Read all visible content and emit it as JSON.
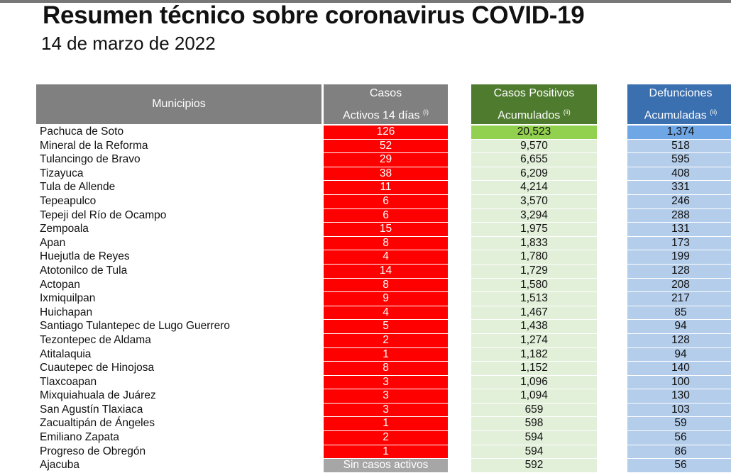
{
  "title": "Resumen técnico sobre coronavirus COVID-19",
  "date": "14 de marzo de 2022",
  "headers": {
    "municipios": "Municipios",
    "activos_l1": "Casos",
    "activos_l2": "Activos 14 días",
    "activos_note": "(i)",
    "positivos_l1": "Casos Positivos",
    "positivos_l2": "Acumulados",
    "positivos_note": "(ii)",
    "defunciones_l1": "Defunciones",
    "defunciones_l2": "Acumuladas",
    "defunciones_note": "(ii)"
  },
  "colors": {
    "header_gray": "#808080",
    "header_green": "#4f7b2f",
    "header_blue": "#3a6fb0",
    "active_red": "#ff0000",
    "no_active_gray": "#a6a6a6",
    "positive_light": "#e2efd9",
    "positive_top": "#92d050",
    "deaths_light": "#b4cdea",
    "deaths_top": "#6ea6e6"
  },
  "rows": [
    {
      "municipio": "Pachuca de Soto",
      "activos": "126",
      "positivos": "20,523",
      "defunciones": "1,374"
    },
    {
      "municipio": "Mineral de la Reforma",
      "activos": "52",
      "positivos": "9,570",
      "defunciones": "518"
    },
    {
      "municipio": "Tulancingo de Bravo",
      "activos": "29",
      "positivos": "6,655",
      "defunciones": "595"
    },
    {
      "municipio": "Tizayuca",
      "activos": "38",
      "positivos": "6,209",
      "defunciones": "408"
    },
    {
      "municipio": "Tula de Allende",
      "activos": "11",
      "positivos": "4,214",
      "defunciones": "331"
    },
    {
      "municipio": "Tepeapulco",
      "activos": "6",
      "positivos": "3,570",
      "defunciones": "246"
    },
    {
      "municipio": "Tepeji del Río de Ocampo",
      "activos": "6",
      "positivos": "3,294",
      "defunciones": "288"
    },
    {
      "municipio": "Zempoala",
      "activos": "15",
      "positivos": "1,975",
      "defunciones": "131"
    },
    {
      "municipio": "Apan",
      "activos": "8",
      "positivos": "1,833",
      "defunciones": "173"
    },
    {
      "municipio": "Huejutla de Reyes",
      "activos": "4",
      "positivos": "1,780",
      "defunciones": "199"
    },
    {
      "municipio": "Atotonilco de Tula",
      "activos": "14",
      "positivos": "1,729",
      "defunciones": "128"
    },
    {
      "municipio": "Actopan",
      "activos": "8",
      "positivos": "1,580",
      "defunciones": "208"
    },
    {
      "municipio": "Ixmiquilpan",
      "activos": "9",
      "positivos": "1,513",
      "defunciones": "217"
    },
    {
      "municipio": "Huichapan",
      "activos": "4",
      "positivos": "1,467",
      "defunciones": "85"
    },
    {
      "municipio": "Santiago Tulantepec de Lugo Guerrero",
      "activos": "5",
      "positivos": "1,438",
      "defunciones": "94"
    },
    {
      "municipio": "Tezontepec de Aldama",
      "activos": "2",
      "positivos": "1,274",
      "defunciones": "128"
    },
    {
      "municipio": "Atitalaquia",
      "activos": "1",
      "positivos": "1,182",
      "defunciones": "94"
    },
    {
      "municipio": "Cuautepec de Hinojosa",
      "activos": "8",
      "positivos": "1,152",
      "defunciones": "140"
    },
    {
      "municipio": "Tlaxcoapan",
      "activos": "3",
      "positivos": "1,096",
      "defunciones": "100"
    },
    {
      "municipio": "Mixquiahuala de Juárez",
      "activos": "3",
      "positivos": "1,094",
      "defunciones": "130"
    },
    {
      "municipio": "San Agustín Tlaxiaca",
      "activos": "3",
      "positivos": "659",
      "defunciones": "103"
    },
    {
      "municipio": "Zacualtipán de Ángeles",
      "activos": "1",
      "positivos": "598",
      "defunciones": "59"
    },
    {
      "municipio": "Emiliano Zapata",
      "activos": "2",
      "positivos": "594",
      "defunciones": "56"
    },
    {
      "municipio": "Progreso de Obregón",
      "activos": "1",
      "positivos": "594",
      "defunciones": "86"
    },
    {
      "municipio": "Ajacuba",
      "activos": "Sin casos activos",
      "positivos": "592",
      "defunciones": "56",
      "sin_activos": true
    }
  ]
}
